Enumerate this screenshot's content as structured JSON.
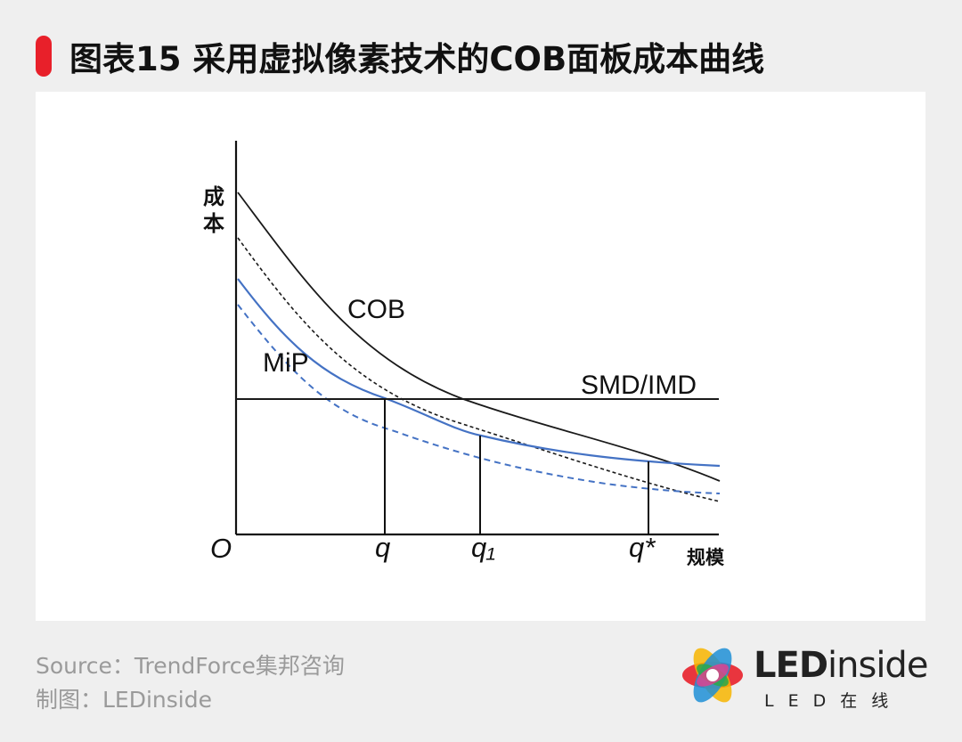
{
  "header": {
    "title": "图表15 采用虚拟像素技术的COB面板成本曲线"
  },
  "footer": {
    "source": "Source：TrendForce集邦咨询",
    "credit": "制图：LEDinside"
  },
  "logo": {
    "brand_bold": "LED",
    "brand_rest": "inside",
    "subtitle": "LED在线"
  },
  "colors": {
    "accent": "#e8202a",
    "black_curve": "#1a1a1a",
    "blue_curve": "#4472c4"
  },
  "chart_data": {
    "type": "line",
    "ylabel": "成本",
    "xlabel": "规模",
    "origin_label": "O",
    "x_tick_labels": [
      "q",
      "q₁",
      "q*"
    ],
    "axis_numbers_shown": false,
    "series": [
      {
        "name": "COB",
        "style": "solid",
        "color": "#1a1a1a"
      },
      {
        "name": "",
        "style": "dashed",
        "color": "#1a1a1a"
      },
      {
        "name": "MiP",
        "style": "solid",
        "color": "#4472c4"
      },
      {
        "name": "",
        "style": "dashed",
        "color": "#4472c4"
      },
      {
        "name": "SMD/IMD",
        "style": "solid",
        "color": "#1a1a1a"
      }
    ]
  }
}
